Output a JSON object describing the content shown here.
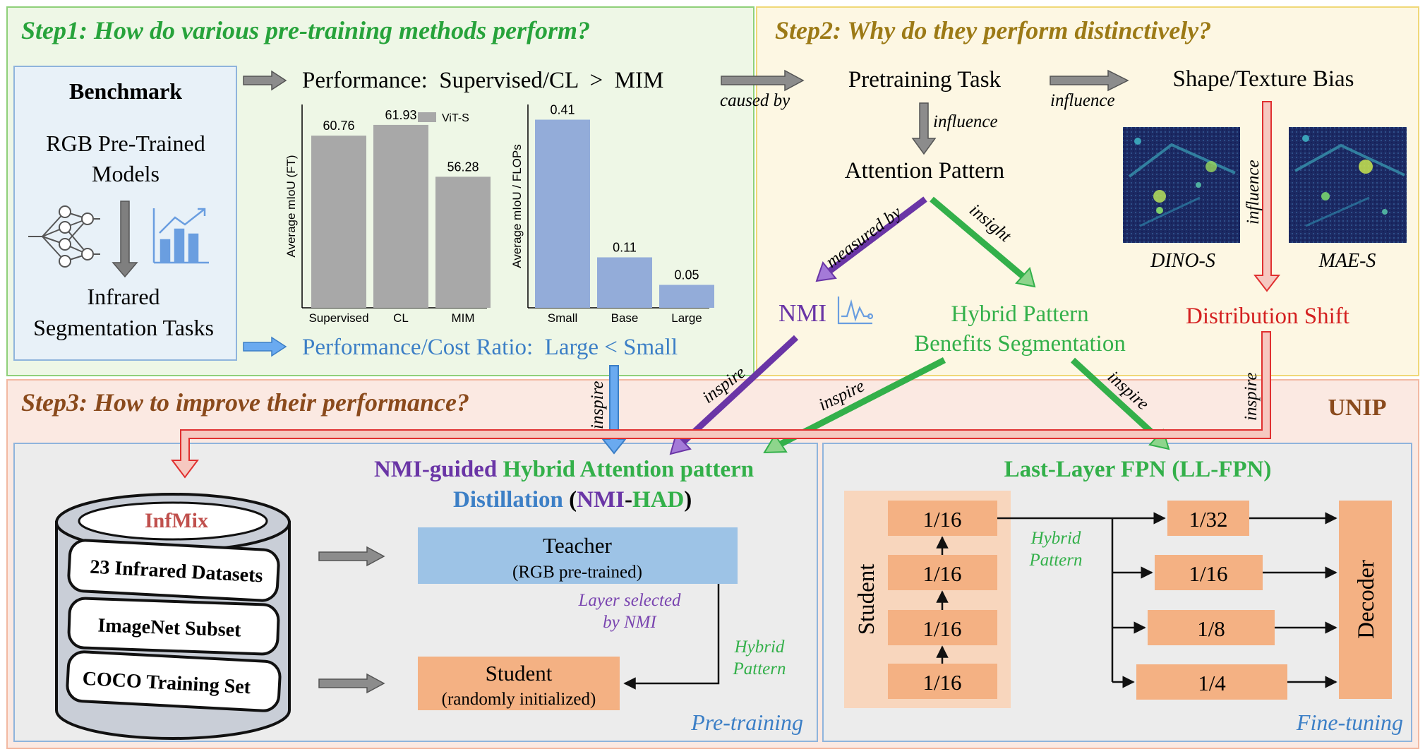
{
  "colors": {
    "step1_bg": "#eef7e6",
    "step1_border": "#8fd07a",
    "step2_bg": "#fdf7e3",
    "step2_border": "#f0d878",
    "step3_bg": "#fbe9e2",
    "step3_border": "#f2b9a2",
    "panel_bg": "#ececec",
    "panel_border": "#8fb4dc",
    "green_title": "#27a33b",
    "olive_title": "#9c7a16",
    "brown_title": "#8a4a1c",
    "blue": "#3c7fc6",
    "purple": "#6a35a6",
    "green": "#33b04a",
    "red": "#d42020",
    "bar_gray": "#a8a8a8",
    "bar_blue": "#93acd9",
    "orange": "#f4b183",
    "teacher": "#9dc3e6"
  },
  "step1": {
    "title": "Step1: How do various pre-training methods perform?",
    "benchmark": {
      "title": "Benchmark",
      "line1": "RGB Pre-Trained",
      "line2": "Models",
      "line3": "Infrared",
      "line4": "Segmentation Tasks",
      "icons": [
        "neural-network-icon",
        "bar-chart-icon"
      ]
    },
    "performance_line": "Performance:  Supervised/CL  >  MIM",
    "ratio_line": "Performance/Cost Ratio:  Large < Small"
  },
  "chart_data": [
    {
      "type": "bar",
      "categories": [
        "Supervised",
        "CL",
        "MIM"
      ],
      "values": [
        60.76,
        61.93,
        56.28
      ],
      "value_labels": [
        "60.76",
        "61.93",
        "56.28"
      ],
      "ylabel": "Average mIoU (FT)",
      "legend": "ViT-S",
      "legend_position": "top-right",
      "ylim": [
        42,
        64
      ],
      "grid": false
    },
    {
      "type": "bar",
      "categories": [
        "Small",
        "Base",
        "Large"
      ],
      "values": [
        0.41,
        0.11,
        0.05
      ],
      "value_labels": [
        "0.41",
        "0.11",
        "0.05"
      ],
      "ylabel": "Average mIoU / FLOPs",
      "ylim": [
        0,
        0.44
      ],
      "grid": false
    }
  ],
  "step2": {
    "title": "Step2: Why do they perform distinctively?",
    "caused_by": "caused by",
    "pretraining_task": "Pretraining Task",
    "influence1": "influence",
    "shape_texture": "Shape/Texture Bias",
    "influence2": "influence",
    "attention_pattern": "Attention Pattern",
    "measured_by": "measured by",
    "insight": "insight",
    "nmi": "NMI",
    "hybrid_line1": "Hybrid Pattern",
    "hybrid_line2": "Benefits Segmentation",
    "dino_label": "DINO-S",
    "mae_label": "MAE-S",
    "influence3": "influence",
    "distribution_shift": "Distribution Shift"
  },
  "step3": {
    "title": "Step3: How to improve their performance?",
    "unip": "UNIP",
    "inspire_labels": [
      "inspire",
      "inspire",
      "inspire",
      "inspire",
      "inspire"
    ],
    "pretraining": {
      "title_nmi": "NMI-guided ",
      "title_hybrid": "Hybrid Attention pattern",
      "title_distill": "Distillation",
      "paren_open": " (",
      "title_nmi2": "NMI",
      "dash": "-",
      "title_had": "HAD",
      "paren_close": ")",
      "infmix": "InfMix",
      "datasets": [
        "23 Infrared Datasets",
        "ImageNet Subset",
        "COCO Training Set"
      ],
      "teacher": "Teacher",
      "teacher_sub": "(RGB pre-trained)",
      "layer_line1": "Layer selected",
      "layer_line2": "by NMI",
      "hybrid_line1": "Hybrid",
      "hybrid_line2": "Pattern",
      "student": "Student",
      "student_sub": "(randomly initialized)",
      "footer": "Pre-training"
    },
    "finetuning": {
      "title": "Last-Layer FPN (LL-FPN)",
      "student_label": "Student",
      "student_blocks": [
        "1/16",
        "1/16",
        "1/16",
        "1/16"
      ],
      "hybrid_line1": "Hybrid",
      "hybrid_line2": "Pattern",
      "fpn_blocks": [
        "1/32",
        "1/16",
        "1/8",
        "1/4"
      ],
      "decoder": "Decoder",
      "footer": "Fine-tuning"
    }
  }
}
